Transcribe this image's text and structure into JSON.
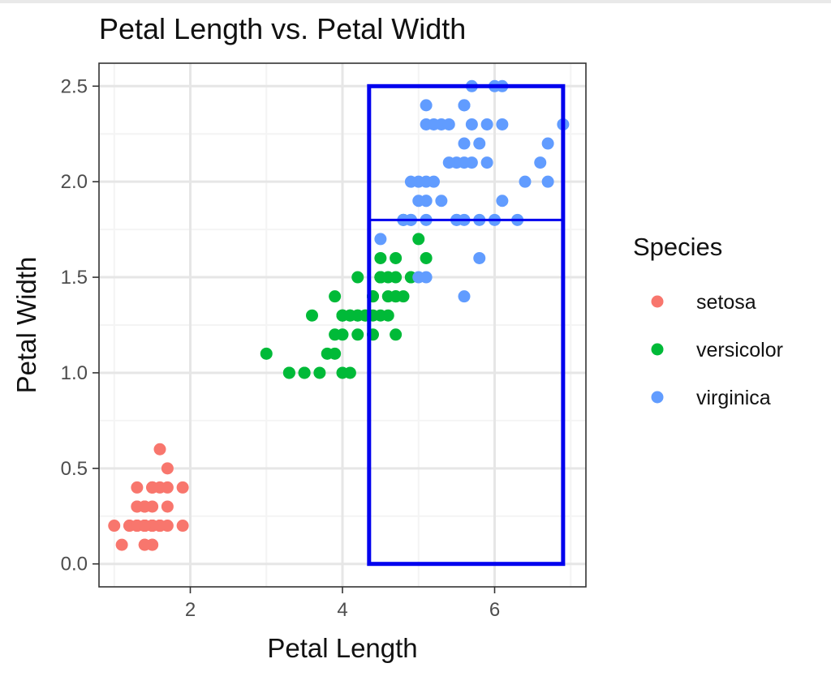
{
  "chart_data": {
    "type": "scatter",
    "title": "Petal Length vs. Petal Width",
    "xlabel": "Petal Length",
    "ylabel": "Petal Width",
    "xlim": [
      0.8,
      7.2
    ],
    "ylim": [
      -0.12,
      2.62
    ],
    "x_ticks": [
      2,
      4,
      6
    ],
    "x_tick_labels": [
      "2",
      "4",
      "6"
    ],
    "y_ticks": [
      0,
      0.5,
      1,
      1.5,
      2,
      2.5
    ],
    "y_tick_labels": [
      "0.0",
      "0.5",
      "1.0",
      "1.5",
      "2.0",
      "2.5"
    ],
    "grid": true,
    "legend": {
      "title": "Species",
      "position": "right"
    },
    "series": [
      {
        "name": "setosa",
        "color": "#F8766D",
        "points": [
          [
            1.4,
            0.2
          ],
          [
            1.4,
            0.2
          ],
          [
            1.3,
            0.2
          ],
          [
            1.5,
            0.2
          ],
          [
            1.4,
            0.2
          ],
          [
            1.7,
            0.4
          ],
          [
            1.4,
            0.3
          ],
          [
            1.5,
            0.2
          ],
          [
            1.4,
            0.2
          ],
          [
            1.5,
            0.1
          ],
          [
            1.5,
            0.2
          ],
          [
            1.6,
            0.2
          ],
          [
            1.4,
            0.1
          ],
          [
            1.1,
            0.1
          ],
          [
            1.2,
            0.2
          ],
          [
            1.5,
            0.4
          ],
          [
            1.3,
            0.4
          ],
          [
            1.4,
            0.3
          ],
          [
            1.7,
            0.3
          ],
          [
            1.5,
            0.3
          ],
          [
            1.7,
            0.2
          ],
          [
            1.5,
            0.4
          ],
          [
            1.0,
            0.2
          ],
          [
            1.7,
            0.5
          ],
          [
            1.9,
            0.2
          ],
          [
            1.6,
            0.2
          ],
          [
            1.6,
            0.4
          ],
          [
            1.5,
            0.2
          ],
          [
            1.4,
            0.2
          ],
          [
            1.6,
            0.2
          ],
          [
            1.6,
            0.2
          ],
          [
            1.5,
            0.4
          ],
          [
            1.5,
            0.1
          ],
          [
            1.4,
            0.2
          ],
          [
            1.5,
            0.2
          ],
          [
            1.2,
            0.2
          ],
          [
            1.3,
            0.2
          ],
          [
            1.4,
            0.1
          ],
          [
            1.3,
            0.2
          ],
          [
            1.5,
            0.2
          ],
          [
            1.3,
            0.3
          ],
          [
            1.3,
            0.3
          ],
          [
            1.3,
            0.2
          ],
          [
            1.6,
            0.6
          ],
          [
            1.9,
            0.4
          ],
          [
            1.4,
            0.3
          ],
          [
            1.6,
            0.2
          ],
          [
            1.4,
            0.2
          ],
          [
            1.5,
            0.2
          ],
          [
            1.4,
            0.2
          ]
        ]
      },
      {
        "name": "versicolor",
        "color": "#00BA38",
        "points": [
          [
            4.7,
            1.4
          ],
          [
            4.5,
            1.5
          ],
          [
            4.9,
            1.5
          ],
          [
            4.0,
            1.3
          ],
          [
            4.6,
            1.5
          ],
          [
            4.5,
            1.3
          ],
          [
            4.7,
            1.6
          ],
          [
            3.3,
            1.0
          ],
          [
            4.6,
            1.3
          ],
          [
            3.9,
            1.4
          ],
          [
            3.5,
            1.0
          ],
          [
            4.2,
            1.5
          ],
          [
            4.0,
            1.0
          ],
          [
            4.7,
            1.4
          ],
          [
            3.6,
            1.3
          ],
          [
            4.4,
            1.4
          ],
          [
            4.5,
            1.5
          ],
          [
            4.1,
            1.0
          ],
          [
            4.5,
            1.5
          ],
          [
            3.9,
            1.1
          ],
          [
            4.8,
            1.8
          ],
          [
            4.0,
            1.3
          ],
          [
            4.9,
            1.5
          ],
          [
            4.7,
            1.2
          ],
          [
            4.3,
            1.3
          ],
          [
            4.4,
            1.4
          ],
          [
            4.8,
            1.4
          ],
          [
            5.0,
            1.7
          ],
          [
            4.5,
            1.5
          ],
          [
            3.5,
            1.0
          ],
          [
            3.8,
            1.1
          ],
          [
            3.7,
            1.0
          ],
          [
            3.9,
            1.2
          ],
          [
            5.1,
            1.6
          ],
          [
            4.5,
            1.5
          ],
          [
            4.5,
            1.6
          ],
          [
            4.7,
            1.5
          ],
          [
            4.4,
            1.3
          ],
          [
            4.1,
            1.3
          ],
          [
            4.0,
            1.3
          ],
          [
            4.4,
            1.2
          ],
          [
            4.6,
            1.4
          ],
          [
            4.0,
            1.2
          ],
          [
            3.3,
            1.0
          ],
          [
            4.2,
            1.3
          ],
          [
            4.2,
            1.2
          ],
          [
            4.2,
            1.3
          ],
          [
            4.3,
            1.3
          ],
          [
            3.0,
            1.1
          ],
          [
            4.1,
            1.3
          ]
        ]
      },
      {
        "name": "virginica",
        "color": "#619CFF",
        "points": [
          [
            6.0,
            2.5
          ],
          [
            5.1,
            1.9
          ],
          [
            5.9,
            2.1
          ],
          [
            5.6,
            1.8
          ],
          [
            5.8,
            2.2
          ],
          [
            6.6,
            2.1
          ],
          [
            4.5,
            1.7
          ],
          [
            6.3,
            1.8
          ],
          [
            5.8,
            1.8
          ],
          [
            6.1,
            2.5
          ],
          [
            5.1,
            2.0
          ],
          [
            5.3,
            1.9
          ],
          [
            5.5,
            2.1
          ],
          [
            5.0,
            2.0
          ],
          [
            5.1,
            2.4
          ],
          [
            5.3,
            2.3
          ],
          [
            5.5,
            1.8
          ],
          [
            6.7,
            2.2
          ],
          [
            6.9,
            2.3
          ],
          [
            5.0,
            1.5
          ],
          [
            5.7,
            2.3
          ],
          [
            4.9,
            2.0
          ],
          [
            6.7,
            2.0
          ],
          [
            4.9,
            1.8
          ],
          [
            5.7,
            2.1
          ],
          [
            6.0,
            1.8
          ],
          [
            4.8,
            1.8
          ],
          [
            4.9,
            1.8
          ],
          [
            5.6,
            2.1
          ],
          [
            5.8,
            1.6
          ],
          [
            6.1,
            1.9
          ],
          [
            6.4,
            2.0
          ],
          [
            5.6,
            2.2
          ],
          [
            5.1,
            1.5
          ],
          [
            5.6,
            1.4
          ],
          [
            6.1,
            2.3
          ],
          [
            5.6,
            2.4
          ],
          [
            5.5,
            1.8
          ],
          [
            4.8,
            1.8
          ],
          [
            5.4,
            2.1
          ],
          [
            5.6,
            2.4
          ],
          [
            5.1,
            2.3
          ],
          [
            5.1,
            1.9
          ],
          [
            5.9,
            2.3
          ],
          [
            5.7,
            2.5
          ],
          [
            5.2,
            2.3
          ],
          [
            5.0,
            1.9
          ],
          [
            5.2,
            2.0
          ],
          [
            5.4,
            2.3
          ],
          [
            5.1,
            1.8
          ]
        ]
      }
    ],
    "annotations": [
      {
        "type": "rect",
        "color": "#0000EE",
        "x_range": [
          4.35,
          6.9
        ],
        "y_range": [
          0,
          2.5
        ],
        "divider_y": 1.8
      }
    ]
  }
}
